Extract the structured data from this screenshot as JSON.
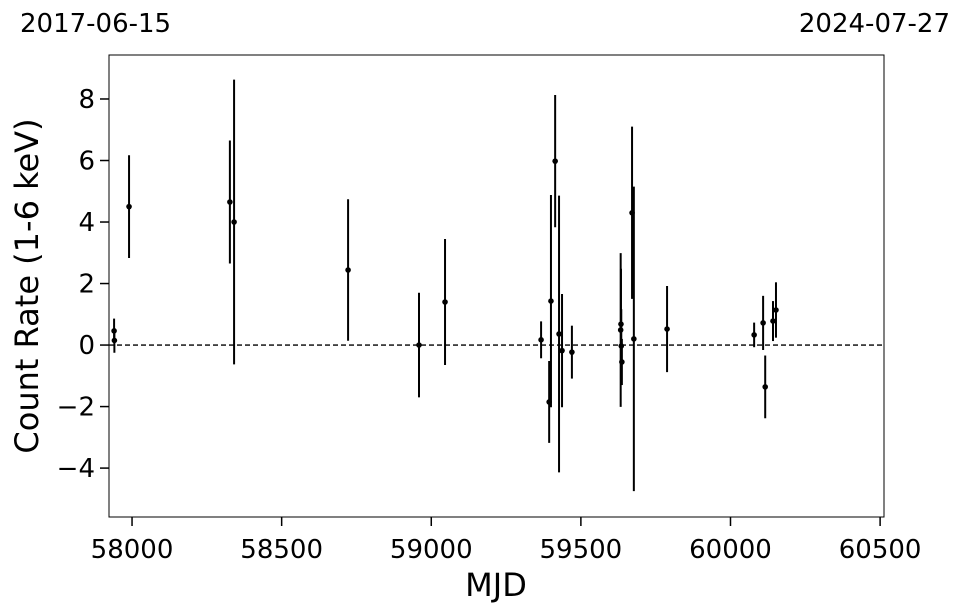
{
  "chart_data": {
    "type": "errorbar",
    "corner_labels": [
      "2017-06-15",
      "2024-07-27"
    ],
    "xlabel": "MJD",
    "ylabel": "Count Rate (1-6 keV)",
    "x": [
      57940,
      57941,
      57990,
      58327,
      58341,
      58722,
      58959,
      59046,
      59367,
      59394,
      59400,
      59414,
      59427,
      59437,
      59470,
      59633,
      59634,
      59635,
      59637,
      59671,
      59677,
      59788,
      60079,
      60109,
      60116,
      60142,
      60152
    ],
    "values": [
      0.46,
      0.15,
      4.5,
      4.65,
      4.0,
      2.44,
      0.0,
      1.4,
      0.17,
      -1.85,
      1.43,
      5.98,
      0.36,
      -0.18,
      -0.23,
      0.49,
      0.68,
      -0.03,
      -0.55,
      4.3,
      0.2,
      0.52,
      0.33,
      0.72,
      -1.36,
      0.78,
      1.14
    ],
    "errors": [
      0.4,
      0.4,
      1.67,
      2.0,
      4.63,
      2.3,
      1.7,
      2.05,
      0.6,
      1.33,
      3.45,
      2.15,
      4.5,
      1.84,
      0.86,
      2.5,
      1.8,
      1.2,
      0.75,
      2.8,
      4.95,
      1.4,
      0.4,
      0.88,
      1.02,
      0.65,
      0.9
    ],
    "color": "#000000",
    "hline": 0,
    "xlim": [
      57923,
      60513
    ],
    "ylim": [
      -5.59,
      9.43
    ],
    "xticks": [
      58000,
      58500,
      59000,
      59500,
      60000,
      60500
    ],
    "yticks": [
      {
        "value": -4,
        "label": "−4"
      },
      {
        "value": -2,
        "label": "−2"
      },
      0,
      2,
      4,
      6,
      8
    ]
  }
}
